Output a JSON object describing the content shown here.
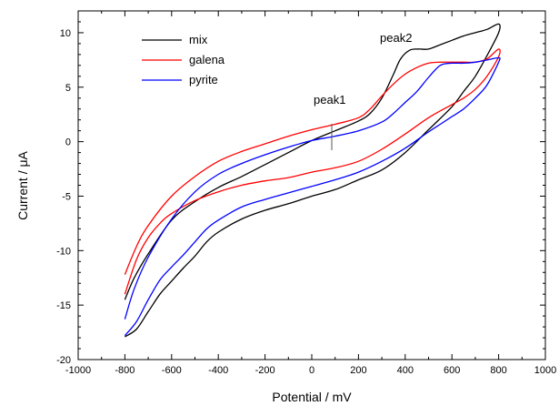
{
  "chart_data": {
    "type": "line",
    "title": "",
    "xlabel": "Potential / mV",
    "ylabel": "Current / μA",
    "xlim": [
      -1000,
      1000
    ],
    "ylim": [
      -20,
      12
    ],
    "x_ticks": [
      -1000,
      -800,
      -600,
      -400,
      -200,
      0,
      200,
      400,
      600,
      800,
      1000
    ],
    "y_ticks": [
      -20,
      -15,
      -10,
      -5,
      0,
      5,
      10
    ],
    "grid": false,
    "legend": {
      "position": "top-left"
    },
    "annotations": [
      {
        "text": "peak1",
        "x": 75,
        "y": 2.3
      },
      {
        "text": "peak2",
        "x": 440,
        "y": 8.5
      }
    ],
    "series": [
      {
        "name": "mix",
        "color": "#000000",
        "points": [
          [
            -800,
            -14.5
          ],
          [
            -760,
            -12.5
          ],
          [
            -700,
            -10.3
          ],
          [
            -600,
            -7.2
          ],
          [
            -500,
            -5.5
          ],
          [
            -400,
            -4.2
          ],
          [
            -300,
            -3.2
          ],
          [
            -200,
            -2.1
          ],
          [
            -100,
            -1.0
          ],
          [
            0,
            0.1
          ],
          [
            100,
            1.0
          ],
          [
            200,
            1.9
          ],
          [
            250,
            2.6
          ],
          [
            300,
            4.0
          ],
          [
            350,
            6.2
          ],
          [
            380,
            7.6
          ],
          [
            420,
            8.4
          ],
          [
            460,
            8.5
          ],
          [
            500,
            8.5
          ],
          [
            550,
            8.9
          ],
          [
            600,
            9.3
          ],
          [
            650,
            9.7
          ],
          [
            700,
            10.0
          ],
          [
            750,
            10.3
          ],
          [
            800,
            10.8
          ],
          [
            800,
            10.0
          ],
          [
            750,
            7.9
          ],
          [
            700,
            6.0
          ],
          [
            650,
            4.6
          ],
          [
            600,
            3.2
          ],
          [
            500,
            1.1
          ],
          [
            400,
            -1.0
          ],
          [
            300,
            -2.6
          ],
          [
            200,
            -3.5
          ],
          [
            100,
            -4.4
          ],
          [
            0,
            -5.0
          ],
          [
            -100,
            -5.7
          ],
          [
            -200,
            -6.3
          ],
          [
            -300,
            -7.1
          ],
          [
            -400,
            -8.3
          ],
          [
            -450,
            -9.2
          ],
          [
            -500,
            -10.5
          ],
          [
            -550,
            -11.6
          ],
          [
            -600,
            -12.8
          ],
          [
            -650,
            -14.0
          ],
          [
            -700,
            -15.6
          ],
          [
            -750,
            -17.2
          ],
          [
            -800,
            -17.9
          ]
        ]
      },
      {
        "name": "galena",
        "color": "#ff0000",
        "points": [
          [
            -800,
            -12.2
          ],
          [
            -750,
            -9.6
          ],
          [
            -700,
            -7.7
          ],
          [
            -600,
            -5.0
          ],
          [
            -500,
            -3.2
          ],
          [
            -400,
            -1.8
          ],
          [
            -300,
            -0.9
          ],
          [
            -200,
            -0.2
          ],
          [
            -100,
            0.5
          ],
          [
            0,
            1.1
          ],
          [
            100,
            1.6
          ],
          [
            200,
            2.2
          ],
          [
            250,
            3.0
          ],
          [
            300,
            4.2
          ],
          [
            350,
            5.3
          ],
          [
            400,
            6.2
          ],
          [
            450,
            6.8
          ],
          [
            500,
            7.2
          ],
          [
            550,
            7.3
          ],
          [
            600,
            7.3
          ],
          [
            650,
            7.3
          ],
          [
            700,
            7.3
          ],
          [
            750,
            7.6
          ],
          [
            800,
            8.5
          ],
          [
            800,
            7.8
          ],
          [
            750,
            6.0
          ],
          [
            700,
            4.8
          ],
          [
            650,
            4.0
          ],
          [
            600,
            3.4
          ],
          [
            500,
            2.2
          ],
          [
            400,
            0.7
          ],
          [
            300,
            -0.7
          ],
          [
            200,
            -1.8
          ],
          [
            100,
            -2.4
          ],
          [
            0,
            -2.8
          ],
          [
            -100,
            -3.3
          ],
          [
            -200,
            -3.6
          ],
          [
            -300,
            -4.0
          ],
          [
            -400,
            -4.6
          ],
          [
            -500,
            -5.4
          ],
          [
            -600,
            -6.6
          ],
          [
            -650,
            -7.5
          ],
          [
            -700,
            -8.8
          ],
          [
            -750,
            -10.8
          ],
          [
            -800,
            -14.0
          ]
        ]
      },
      {
        "name": "pyrite",
        "color": "#0000ff",
        "points": [
          [
            -800,
            -16.3
          ],
          [
            -760,
            -13.5
          ],
          [
            -700,
            -10.6
          ],
          [
            -600,
            -7.1
          ],
          [
            -500,
            -4.6
          ],
          [
            -400,
            -3.0
          ],
          [
            -300,
            -2.0
          ],
          [
            -200,
            -1.2
          ],
          [
            -100,
            -0.5
          ],
          [
            0,
            0.1
          ],
          [
            100,
            0.5
          ],
          [
            200,
            1.0
          ],
          [
            300,
            1.8
          ],
          [
            350,
            2.6
          ],
          [
            400,
            3.6
          ],
          [
            450,
            4.6
          ],
          [
            500,
            5.9
          ],
          [
            550,
            7.0
          ],
          [
            600,
            7.2
          ],
          [
            650,
            7.2
          ],
          [
            700,
            7.3
          ],
          [
            750,
            7.5
          ],
          [
            800,
            7.7
          ],
          [
            800,
            7.3
          ],
          [
            750,
            5.2
          ],
          [
            700,
            4.0
          ],
          [
            650,
            3.0
          ],
          [
            600,
            2.3
          ],
          [
            550,
            1.6
          ],
          [
            500,
            0.9
          ],
          [
            400,
            -0.6
          ],
          [
            300,
            -1.8
          ],
          [
            200,
            -2.8
          ],
          [
            100,
            -3.5
          ],
          [
            0,
            -4.1
          ],
          [
            -100,
            -4.7
          ],
          [
            -200,
            -5.3
          ],
          [
            -300,
            -6.0
          ],
          [
            -400,
            -7.2
          ],
          [
            -450,
            -8.0
          ],
          [
            -500,
            -9.2
          ],
          [
            -550,
            -10.4
          ],
          [
            -600,
            -11.5
          ],
          [
            -650,
            -12.7
          ],
          [
            -700,
            -14.5
          ],
          [
            -750,
            -16.5
          ],
          [
            -800,
            -17.8
          ]
        ]
      }
    ]
  }
}
